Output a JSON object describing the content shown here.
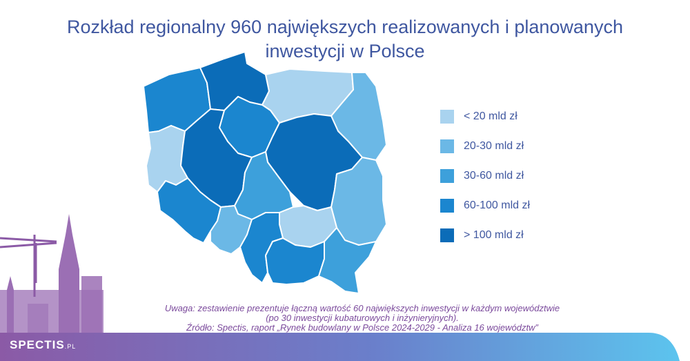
{
  "title_line1": "Rozkład regionalny 960 największych realizowanych i planowanych",
  "title_line2": "inwestycji w Polsce",
  "legend": [
    {
      "label": "< 20 mld zł",
      "color": "#a9d3ef"
    },
    {
      "label": "20-30 mld zł",
      "color": "#6bb8e6"
    },
    {
      "label": "30-60 mld zł",
      "color": "#3da0db"
    },
    {
      "label": "60-100 mld zł",
      "color": "#1b86cf"
    },
    {
      "label": "> 100 mld zł",
      "color": "#0b6cb8"
    }
  ],
  "note_line1": "Uwaga: zestawienie prezentuje łączną wartość 60 największych inwestycji w każdym województwie",
  "note_line2": "(po 30 inwestycji kubaturowych i inżynieryjnych).",
  "source": "Źródło: Spectis, raport „Rynek budowlany w Polsce 2024-2029 - Analiza 16 województw”",
  "logo_main": "SPECTIS",
  "logo_suffix": ".PL",
  "colors": {
    "title": "#3f57a0",
    "note": "#7b4a9c",
    "footer_start": "#8b5aa6",
    "footer_end": "#5cc4ee"
  }
}
